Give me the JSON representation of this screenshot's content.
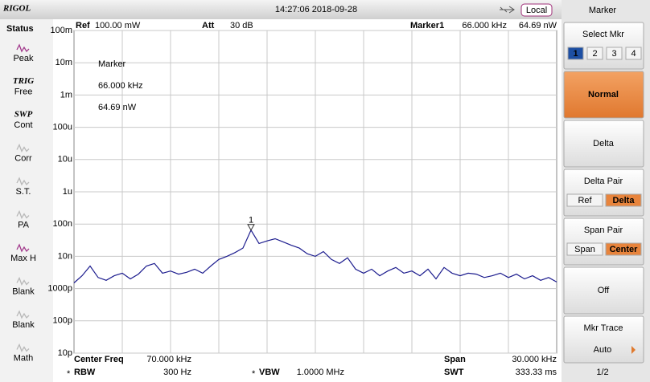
{
  "header": {
    "logo": "RIGOL",
    "datetime": "14:27:06 2018-09-28",
    "mode": "Local"
  },
  "status": {
    "title": "Status",
    "items": [
      {
        "label": "Peak",
        "enabled": true
      },
      {
        "tag": "TRIG",
        "label": "Free",
        "enabled": true
      },
      {
        "tag": "SWP",
        "label": "Cont",
        "enabled": true
      },
      {
        "label": "Corr",
        "enabled": false
      },
      {
        "label": "S.T.",
        "enabled": false
      },
      {
        "label": "PA",
        "enabled": false
      },
      {
        "label": "Max H",
        "enabled": true
      },
      {
        "label": "Blank",
        "enabled": false
      },
      {
        "label": "Blank",
        "enabled": false
      },
      {
        "label": "Math",
        "enabled": false
      }
    ]
  },
  "top_info": {
    "ref_label": "Ref",
    "ref": "100.00 mW",
    "att_label": "Att",
    "att": "30 dB",
    "marker_label": "Marker1",
    "marker_freq": "66.000 kHz",
    "marker_power": "64.69 nW"
  },
  "bottom_info": [
    {
      "label": "Center Freq",
      "value": "70.000 kHz"
    },
    {
      "label": "Span",
      "value": "30.000 kHz"
    },
    {
      "flag": "*",
      "label": "RBW",
      "value": "300 Hz"
    },
    {
      "flag": "*",
      "label": "VBW",
      "value": "1.0000 MHz"
    },
    {
      "label": "SWT",
      "value": "333.33 ms"
    }
  ],
  "chart_data": {
    "type": "line",
    "color": "#1c1c8e",
    "log_scale": true,
    "grid": true,
    "xlim": [
      55,
      85
    ],
    "ylim": [
      1e-11,
      0.1
    ],
    "yticks": [
      {
        "value": 0.1,
        "label": "100m"
      },
      {
        "value": 0.01,
        "label": "10m"
      },
      {
        "value": 0.001,
        "label": "1m"
      },
      {
        "value": 0.0001,
        "label": "100u"
      },
      {
        "value": 1e-05,
        "label": "10u"
      },
      {
        "value": 1e-06,
        "label": "1u"
      },
      {
        "value": 1e-07,
        "label": "100n"
      },
      {
        "value": 1e-08,
        "label": "10n"
      },
      {
        "value": 1e-09,
        "label": "1000p"
      },
      {
        "value": 1e-10,
        "label": "100p"
      },
      {
        "value": 1e-11,
        "label": "10p"
      }
    ],
    "x": [
      55,
      55.5,
      56,
      56.5,
      57,
      57.5,
      58,
      58.5,
      59,
      59.5,
      60,
      60.5,
      61,
      61.5,
      62,
      62.5,
      63,
      63.5,
      64,
      64.5,
      65,
      65.5,
      66,
      66.5,
      67,
      67.5,
      68,
      68.5,
      69,
      69.5,
      70,
      70.5,
      71,
      71.5,
      72,
      72.5,
      73,
      73.5,
      74,
      74.5,
      75,
      75.5,
      76,
      76.5,
      77,
      77.5,
      78,
      78.5,
      79,
      79.5,
      80,
      80.5,
      81,
      81.5,
      82,
      82.5,
      83,
      83.5,
      84,
      84.5,
      85
    ],
    "values": [
      1.5e-09,
      2.5e-09,
      5e-09,
      2.2e-09,
      1.8e-09,
      2.5e-09,
      3e-09,
      2e-09,
      2.8e-09,
      5e-09,
      6e-09,
      3e-09,
      3.5e-09,
      2.8e-09,
      3.2e-09,
      4e-09,
      3e-09,
      5e-09,
      8e-09,
      1e-08,
      1.3e-08,
      1.8e-08,
      6.469e-08,
      2.5e-08,
      3e-08,
      3.5e-08,
      2.8e-08,
      2.2e-08,
      1.8e-08,
      1.2e-08,
      1e-08,
      1.4e-08,
      8e-09,
      6e-09,
      9e-09,
      4e-09,
      3e-09,
      4e-09,
      2.5e-09,
      3.5e-09,
      4.5e-09,
      3e-09,
      3.5e-09,
      2.5e-09,
      4e-09,
      2e-09,
      4.5e-09,
      3e-09,
      2.5e-09,
      3e-09,
      2.8e-09,
      2.2e-09,
      2.5e-09,
      3e-09,
      2.2e-09,
      2.8e-09,
      2e-09,
      2.5e-09,
      1.8e-09,
      2.2e-09,
      1.6e-09
    ],
    "marker": {
      "label": "1",
      "x": 66,
      "y": 6.469e-08
    },
    "marker_box": [
      "Marker",
      "66.000 kHz",
      "64.69 nW"
    ]
  },
  "menu": {
    "title": "Marker",
    "items": [
      {
        "label": "Select Mkr",
        "options": [
          "1",
          "2",
          "3",
          "4"
        ],
        "selected": 0
      },
      {
        "label": "Normal",
        "active": true
      },
      {
        "label": "Delta"
      },
      {
        "label": "Delta Pair",
        "options": [
          "Ref",
          "Delta"
        ],
        "selected": 1
      },
      {
        "label": "Span Pair",
        "options": [
          "Span",
          "Center"
        ],
        "selected": 1
      },
      {
        "label": "Off"
      },
      {
        "label": "Mkr Trace",
        "value": "Auto"
      }
    ],
    "page": "1/2"
  }
}
